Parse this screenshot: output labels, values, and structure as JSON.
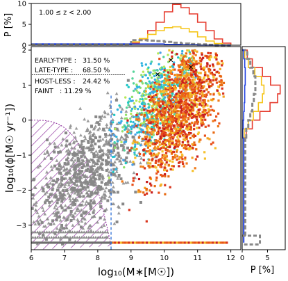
{
  "chart_data": {
    "type": "scatter",
    "main": {
      "xlabel": "log₁₀(M∗[M☉])",
      "ylabel": "log₁₀(ϕ[M☉ yr⁻¹])",
      "xlim": [
        6,
        12.3
      ],
      "ylim": [
        -3.7,
        2.1
      ],
      "xticks": [
        "6",
        "7",
        "8",
        "9",
        "10",
        "11",
        "12"
      ],
      "yticks": [
        "−3",
        "−2",
        "−1",
        "0",
        "1",
        "2"
      ],
      "mass_completeness_limit": 8.4,
      "hatched_region": "excluded low-mass region",
      "clouds": [
        {
          "name": "faint / host-less (grey)",
          "color": "#888888",
          "x_range": [
            6.0,
            10.2
          ],
          "y_range": [
            -3.55,
            1.2
          ],
          "center": [
            7.6,
            -1.6
          ]
        },
        {
          "name": "early-type (blue-cyan)",
          "color": "#2fb3e0",
          "x_range": [
            8.3,
            11.0
          ],
          "y_range": [
            -2.0,
            2.0
          ],
          "center": [
            9.8,
            0.6
          ]
        },
        {
          "name": "late-type (green-orange-red)",
          "color": "#e8501a",
          "x_range": [
            8.4,
            11.8
          ],
          "y_range": [
            -3.0,
            2.0
          ],
          "center": [
            10.5,
            0.3
          ]
        }
      ],
      "floor_row": {
        "y": -3.5,
        "x_range": [
          8.4,
          11.9
        ]
      }
    },
    "stats": {
      "early_label": "EARLY-TYPE :",
      "early_value": "31.50  %",
      "late_label": "LATE-TYPE  :",
      "late_value": "68.50 %",
      "hostless_label": "HOST-LESS :",
      "hostless_value": "24.42 %",
      "faint_label": "FAINT",
      "faint_value": ": 11.29  %"
    },
    "top_hist": {
      "ylabel": "P [%]",
      "yticks": [
        "0",
        "5",
        "10"
      ],
      "ylim": [
        0,
        10
      ],
      "redshift_label": "1.00 ≤ z < 2.00",
      "bins_x": [
        9.0,
        9.25,
        9.5,
        9.75,
        10.0,
        10.25,
        10.5,
        10.75,
        11.0,
        11.25,
        11.5,
        11.75,
        12.0
      ],
      "series": [
        {
          "color": "#e63b2e",
          "values": [
            0.5,
            1.5,
            3.5,
            5.5,
            8.0,
            9.8,
            9.0,
            7.5,
            5.5,
            3.5,
            1.5,
            0.5
          ]
        },
        {
          "color": "#f5c518",
          "values": [
            0.8,
            1.6,
            2.6,
            3.5,
            4.2,
            4.4,
            4.0,
            3.2,
            2.0,
            1.0,
            0.4,
            0.1
          ]
        },
        {
          "color": "#888888",
          "values": [
            1.2,
            1.2,
            1.1,
            1.0,
            0.8,
            0.6,
            0.4,
            0.3,
            0.2,
            0.1,
            0.0,
            0.0
          ]
        },
        {
          "color": "#2040e0",
          "values": [
            0.3,
            0.3,
            0.3,
            0.3,
            0.2,
            0.2,
            0.1,
            0.1,
            0.0,
            0.0,
            0.0,
            0.0
          ]
        }
      ]
    },
    "right_hist": {
      "xlabel": "P [%]",
      "xticks": [
        "0",
        "5"
      ],
      "xlim": [
        0,
        8.5
      ],
      "bins_y": [
        2.0,
        1.75,
        1.5,
        1.25,
        1.0,
        0.75,
        0.5,
        0.25,
        0.0,
        -0.25,
        -0.5
      ],
      "series": [
        {
          "color": "#e63b2e",
          "values": [
            1.0,
            2.0,
            4.0,
            5.6,
            7.5,
            7.0,
            5.5,
            3.5,
            2.0,
            0.8
          ]
        },
        {
          "color": "#f5c518",
          "values": [
            0.5,
            1.2,
            2.5,
            3.8,
            4.3,
            4.0,
            3.2,
            2.2,
            1.2,
            0.4
          ]
        },
        {
          "color": "#888888",
          "values": [
            1.0,
            1.6,
            2.2,
            2.6,
            2.6,
            2.3,
            2.0,
            1.6,
            1.2,
            0.8
          ]
        },
        {
          "color": "#2040e0",
          "values": [
            0.3,
            0.5,
            0.6,
            0.6,
            0.5,
            0.5,
            0.4,
            0.3,
            0.2,
            0.1
          ]
        }
      ],
      "bottom_grey_value": 3.5
    }
  }
}
